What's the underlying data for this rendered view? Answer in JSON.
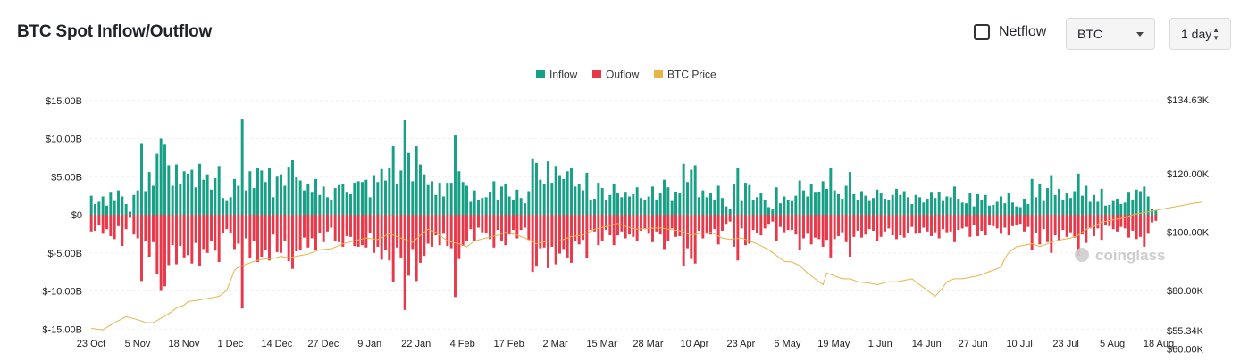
{
  "header": {
    "title": "BTC Spot Inflow/Outflow",
    "netflow_label": "Netflow",
    "coin_select": "BTC",
    "interval_select": "1 day"
  },
  "watermark": "coinglass",
  "colors": {
    "inflow": "#16a085",
    "outflow": "#e8394a",
    "price": "#e8b44a"
  },
  "chart_data": {
    "type": "bar",
    "x_labels": [
      "23 Oct",
      "5 Nov",
      "18 Nov",
      "1 Dec",
      "14 Dec",
      "27 Dec",
      "9 Jan",
      "22 Jan",
      "4 Feb",
      "17 Feb",
      "2 Mar",
      "15 Mar",
      "28 Mar",
      "10 Apr",
      "23 Apr",
      "6 May",
      "19 May",
      "1 Jun",
      "14 Jun",
      "27 Jun",
      "10 Jul",
      "23 Jul",
      "5 Aug",
      "18 Aug"
    ],
    "left_axis": {
      "ticks": [
        "$15.00B",
        "$10.00B",
        "$5.00B",
        "$0",
        "$-5.00B",
        "$-10.00B",
        "$-15.00B"
      ],
      "range": [
        -15,
        15
      ],
      "unit": "B"
    },
    "right_axis": {
      "ticks": [
        "$134.63K",
        "$120.00K",
        "$100.00K",
        "$80.00K",
        "$60.00K",
        "$55.34K"
      ],
      "range": [
        55.34,
        134.63
      ],
      "unit": "K"
    },
    "legend": [
      "Inflow",
      "Ouflow",
      "BTC Price"
    ],
    "legend_position": "top-center",
    "grid": true,
    "series": [
      {
        "name": "Inflow",
        "values": [
          2.5,
          1.4,
          1.7,
          2.4,
          1.2,
          2.9,
          1.8,
          3.2,
          2.4,
          1.4,
          0.4,
          2.6,
          3.2,
          9.3,
          3.1,
          5.6,
          3.8,
          8.0,
          10.0,
          9.2,
          6.5,
          3.8,
          6.6,
          4.0,
          5.7,
          5.4,
          5.9,
          3.6,
          6.7,
          4.6,
          5.3,
          3.3,
          4.8,
          6.4,
          2.2,
          1.8,
          2.3,
          4.7,
          3.8,
          12.5,
          3.2,
          5.7,
          3.5,
          6.1,
          5.8,
          4.3,
          6.1,
          2.3,
          5.0,
          5.3,
          3.8,
          6.3,
          7.2,
          4.9,
          4.5,
          3.2,
          4.1,
          2.9,
          4.7,
          2.6,
          3.7,
          2.3,
          1.9,
          3.5,
          3.9,
          4.0,
          2.9,
          2.7,
          4.2,
          4.4,
          4.3,
          4.6,
          2.3,
          5.2,
          4.3,
          6.0,
          4.5,
          6.1,
          9.0,
          4.1,
          5.8,
          12.4,
          8.1,
          4.4,
          9.0,
          6.6,
          5.3,
          3.9,
          4.4,
          2.6,
          4.2,
          2.4,
          4.2,
          4.2,
          10.4,
          5.7,
          4.3,
          3.8,
          1.7,
          3.2,
          1.9,
          2.2,
          2.3,
          3.0,
          4.4,
          2.0,
          3.7,
          4.1,
          2.4,
          1.9,
          3.3,
          2.2,
          1.5,
          3.1,
          7.4,
          6.8,
          4.6,
          4.0,
          7.0,
          4.2,
          6.4,
          5.2,
          4.7,
          5.7,
          6.2,
          3.7,
          4.1,
          3.2,
          5.5,
          1.9,
          2.1,
          4.2,
          3.5,
          1.9,
          2.6,
          4.1,
          2.8,
          2.3,
          2.9,
          2.4,
          2.7,
          3.6,
          2.2,
          2.0,
          2.4,
          3.7,
          2.0,
          2.8,
          4.6,
          3.6,
          1.8,
          3.0,
          2.8,
          6.7,
          4.3,
          5.9,
          6.5,
          2.3,
          3.2,
          2.3,
          2.8,
          1.9,
          3.8,
          2.2,
          1.1,
          0.7,
          4.0,
          6.2,
          1.8,
          4.2,
          3.9,
          1.9,
          2.3,
          2.8,
          1.9,
          1.0,
          0.7,
          3.6,
          1.5,
          2.4,
          1.9,
          1.8,
          2.5,
          4.5,
          3.2,
          2.4,
          4.0,
          2.9,
          3.0,
          4.4,
          3.4,
          6.2,
          3.2,
          2.7,
          2.1,
          3.8,
          5.6,
          2.7,
          2.0,
          3.1,
          2.5,
          1.8,
          2.2,
          3.3,
          2.8,
          2.1,
          1.9,
          2.6,
          3.4,
          2.6,
          3.1,
          2.3,
          1.4,
          2.6,
          2.3,
          1.6,
          2.1,
          2.9,
          2.2,
          3.0,
          1.8,
          2.4,
          2.3,
          3.7,
          2.1,
          1.6,
          1.5,
          2.8,
          1.1,
          2.7,
          2.0,
          2.6,
          1.2,
          1.3,
          1.7,
          2.4,
          1.5,
          2.8,
          1.6,
          1.1,
          1.0,
          2.1,
          1.4,
          4.7,
          2.3,
          4.1,
          1.8,
          3.5,
          5.2,
          2.6,
          3.4,
          1.9,
          2.8,
          2.2,
          3.1,
          5.4,
          2.5,
          3.8,
          1.7,
          2.6,
          1.7,
          3.4,
          1.2,
          1.3,
          1.8,
          2.1,
          1.4,
          1.6,
          2.9,
          2.0,
          3.3,
          3.1,
          3.7,
          2.4,
          0.8,
          0.6
        ],
        "color": "#16a085"
      },
      {
        "name": "Ouflow",
        "values": [
          -2.2,
          -2.1,
          -1.4,
          -2.5,
          -1.9,
          -2.8,
          -3.2,
          -1.5,
          -4.1,
          -1.9,
          -0.4,
          -2.6,
          -3.1,
          -8.7,
          -3.4,
          -5.5,
          -3.6,
          -7.8,
          -10.0,
          -9.4,
          -6.6,
          -4.0,
          -6.5,
          -4.1,
          -5.6,
          -5.3,
          -6.4,
          -3.7,
          -6.7,
          -4.5,
          -5.0,
          -3.5,
          -4.7,
          -6.2,
          -2.4,
          -1.9,
          -2.4,
          -4.5,
          -3.8,
          -12.3,
          -3.1,
          -5.7,
          -3.4,
          -6.2,
          -5.5,
          -4.6,
          -6.0,
          -2.6,
          -4.9,
          -5.0,
          -3.5,
          -6.1,
          -7.1,
          -4.8,
          -4.6,
          -3.0,
          -4.3,
          -3.1,
          -4.6,
          -2.4,
          -3.6,
          -2.2,
          -1.7,
          -3.4,
          -3.6,
          -4.2,
          -2.8,
          -2.9,
          -4.1,
          -4.2,
          -4.0,
          -4.3,
          -2.4,
          -5.0,
          -4.2,
          -5.9,
          -4.6,
          -6.0,
          -8.8,
          -4.3,
          -5.6,
          -12.5,
          -8.0,
          -4.5,
          -8.7,
          -6.3,
          -5.4,
          -3.8,
          -4.2,
          -2.7,
          -4.0,
          -2.5,
          -4.1,
          -4.4,
          -10.8,
          -5.8,
          -4.1,
          -3.5,
          -1.9,
          -3.4,
          -1.7,
          -2.3,
          -2.4,
          -3.2,
          -4.3,
          -2.0,
          -3.5,
          -4.0,
          -2.6,
          -2.0,
          -3.1,
          -2.0,
          -1.7,
          -3.3,
          -7.5,
          -6.8,
          -4.4,
          -4.3,
          -7.0,
          -4.2,
          -6.5,
          -5.1,
          -4.5,
          -5.6,
          -6.3,
          -3.5,
          -3.9,
          -3.3,
          -5.7,
          -2.0,
          -2.2,
          -4.0,
          -3.4,
          -2.0,
          -2.7,
          -4.0,
          -2.7,
          -2.2,
          -3.1,
          -2.6,
          -2.9,
          -3.4,
          -2.1,
          -1.9,
          -2.5,
          -3.6,
          -2.2,
          -2.6,
          -4.5,
          -3.4,
          -1.8,
          -2.9,
          -2.8,
          -6.7,
          -4.4,
          -5.8,
          -6.4,
          -2.1,
          -3.1,
          -2.5,
          -2.6,
          -1.9,
          -3.9,
          -2.1,
          -1.2,
          -0.9,
          -4.2,
          -6.0,
          -1.8,
          -4.0,
          -3.8,
          -2.0,
          -2.4,
          -2.7,
          -1.8,
          -1.2,
          -0.9,
          -3.4,
          -1.6,
          -2.3,
          -2.0,
          -2.0,
          -2.6,
          -4.6,
          -3.1,
          -2.5,
          -3.9,
          -3.0,
          -3.2,
          -4.2,
          -3.3,
          -5.6,
          -3.2,
          -2.8,
          -2.3,
          -3.6,
          -5.5,
          -2.9,
          -2.1,
          -3.0,
          -2.6,
          -1.9,
          -2.1,
          -3.4,
          -2.9,
          -2.2,
          -1.8,
          -2.7,
          -3.2,
          -2.7,
          -3.0,
          -2.4,
          -1.6,
          -2.5,
          -2.4,
          -1.7,
          -2.2,
          -2.8,
          -2.3,
          -3.1,
          -1.9,
          -2.3,
          -2.2,
          -3.6,
          -2.0,
          -1.8,
          -1.6,
          -2.9,
          -1.3,
          -2.8,
          -2.1,
          -2.7,
          -1.4,
          -1.5,
          -1.8,
          -2.5,
          -1.7,
          -2.7,
          -1.5,
          -1.3,
          -1.2,
          -2.2,
          -1.6,
          -4.6,
          -2.4,
          -3.9,
          -1.9,
          -3.6,
          -5.0,
          -2.7,
          -3.5,
          -2.0,
          -2.9,
          -2.3,
          -3.0,
          -5.4,
          -2.6,
          -3.7,
          -1.8,
          -2.8,
          -1.8,
          -3.3,
          -1.4,
          -1.5,
          -1.9,
          -2.2,
          -1.6,
          -1.8,
          -3.0,
          -2.1,
          -3.2,
          -2.9,
          -4.2,
          -2.5,
          -1.0,
          -0.8
        ],
        "color": "#e8394a"
      },
      {
        "name": "BTC Price",
        "anchors": [
          [
            0,
            67
          ],
          [
            3,
            66.5
          ],
          [
            6,
            69
          ],
          [
            9,
            71
          ],
          [
            12,
            70
          ],
          [
            14,
            69
          ],
          [
            16,
            69
          ],
          [
            18,
            70.5
          ],
          [
            20,
            72
          ],
          [
            22,
            74
          ],
          [
            24,
            75
          ],
          [
            25,
            76.2
          ],
          [
            27,
            76.5
          ],
          [
            29,
            77
          ],
          [
            31,
            77.5
          ],
          [
            33,
            78
          ],
          [
            35,
            80
          ],
          [
            36,
            83.5
          ],
          [
            37,
            87
          ],
          [
            38,
            88
          ],
          [
            40,
            89
          ],
          [
            42,
            90
          ],
          [
            44,
            90.7
          ],
          [
            47,
            91
          ],
          [
            49,
            91.7
          ],
          [
            51,
            91.2
          ],
          [
            54,
            92
          ],
          [
            56,
            92.5
          ],
          [
            59,
            94
          ],
          [
            62,
            94.3
          ],
          [
            65,
            96
          ],
          [
            68,
            97
          ],
          [
            71,
            98
          ],
          [
            74,
            97.5
          ],
          [
            77,
            99.5
          ],
          [
            80,
            98
          ],
          [
            83,
            96.5
          ],
          [
            85,
            99
          ],
          [
            87,
            101
          ],
          [
            89,
            100
          ],
          [
            92,
            97
          ],
          [
            95,
            96
          ],
          [
            97,
            95
          ],
          [
            99,
            97
          ],
          [
            102,
            98
          ],
          [
            105,
            99
          ],
          [
            107,
            100
          ],
          [
            110,
            99
          ],
          [
            112,
            98
          ],
          [
            115,
            96
          ],
          [
            118,
            97
          ],
          [
            121,
            97
          ],
          [
            124,
            98.5
          ],
          [
            127,
            99
          ],
          [
            130,
            101
          ],
          [
            133,
            102
          ],
          [
            136,
            103
          ],
          [
            138,
            102
          ],
          [
            141,
            101
          ],
          [
            144,
            101.3
          ],
          [
            147,
            101.5
          ],
          [
            149,
            101
          ],
          [
            152,
            100.5
          ],
          [
            155,
            99
          ],
          [
            157,
            99.5
          ],
          [
            160,
            100
          ],
          [
            163,
            98
          ],
          [
            165,
            97.5
          ],
          [
            168,
            98
          ],
          [
            170,
            97
          ],
          [
            172,
            96
          ],
          [
            175,
            94
          ],
          [
            177,
            92
          ],
          [
            179,
            90
          ],
          [
            181,
            89.8
          ],
          [
            183,
            88.5
          ],
          [
            185,
            86
          ],
          [
            187,
            84
          ],
          [
            189,
            82
          ],
          [
            190,
            86
          ],
          [
            192,
            85
          ],
          [
            194,
            84
          ],
          [
            196,
            84
          ],
          [
            198,
            83
          ],
          [
            201,
            82.5
          ],
          [
            203,
            82
          ],
          [
            206,
            83
          ],
          [
            208,
            83
          ],
          [
            210,
            83.5
          ],
          [
            212,
            84
          ],
          [
            214,
            82
          ],
          [
            216,
            80
          ],
          [
            217,
            79
          ],
          [
            218,
            78
          ],
          [
            219,
            79.5
          ],
          [
            220,
            81
          ],
          [
            221,
            83
          ],
          [
            223,
            84
          ],
          [
            225,
            84
          ],
          [
            227,
            84.5
          ],
          [
            229,
            85
          ],
          [
            231,
            86
          ],
          [
            233,
            87
          ],
          [
            235,
            88
          ],
          [
            236,
            91
          ],
          [
            237,
            93
          ],
          [
            238,
            94
          ],
          [
            239,
            95
          ],
          [
            241,
            95.5
          ],
          [
            243,
            96
          ],
          [
            245,
            95
          ],
          [
            247,
            96
          ],
          [
            249,
            97
          ],
          [
            251,
            97.5
          ],
          [
            253,
            98
          ],
          [
            255,
            99
          ],
          [
            257,
            101
          ],
          [
            259,
            102
          ],
          [
            261,
            103.5
          ],
          [
            263,
            104
          ],
          [
            265,
            104.5
          ],
          [
            267,
            105
          ],
          [
            269,
            106
          ],
          [
            271,
            106.5
          ],
          [
            273,
            107
          ],
          [
            275,
            107.5
          ],
          [
            277,
            108
          ],
          [
            279,
            108.5
          ],
          [
            281,
            109
          ],
          [
            283,
            109.5
          ],
          [
            285,
            110
          ],
          [
            287,
            110.3
          ]
        ],
        "color": "#e8b44a"
      }
    ]
  }
}
